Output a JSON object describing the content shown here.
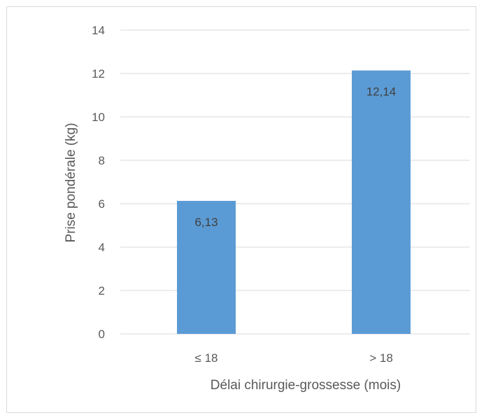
{
  "chart_data": {
    "type": "bar",
    "categories": [
      "≤ 18",
      "> 18"
    ],
    "values": [
      6.13,
      12.14
    ],
    "data_labels": [
      "6,13",
      "12,14"
    ],
    "title": "",
    "xlabel": "Délai chirurgie-grossesse (mois)",
    "ylabel": "Prise pondérale (kg)",
    "ylim": [
      0,
      14
    ],
    "yticks": [
      0,
      2,
      4,
      6,
      8,
      10,
      12,
      14
    ],
    "grid": true,
    "legend": "none",
    "colors": {
      "bar": "#5b9bd5",
      "grid": "#d9d9d9",
      "text": "#595959"
    }
  }
}
